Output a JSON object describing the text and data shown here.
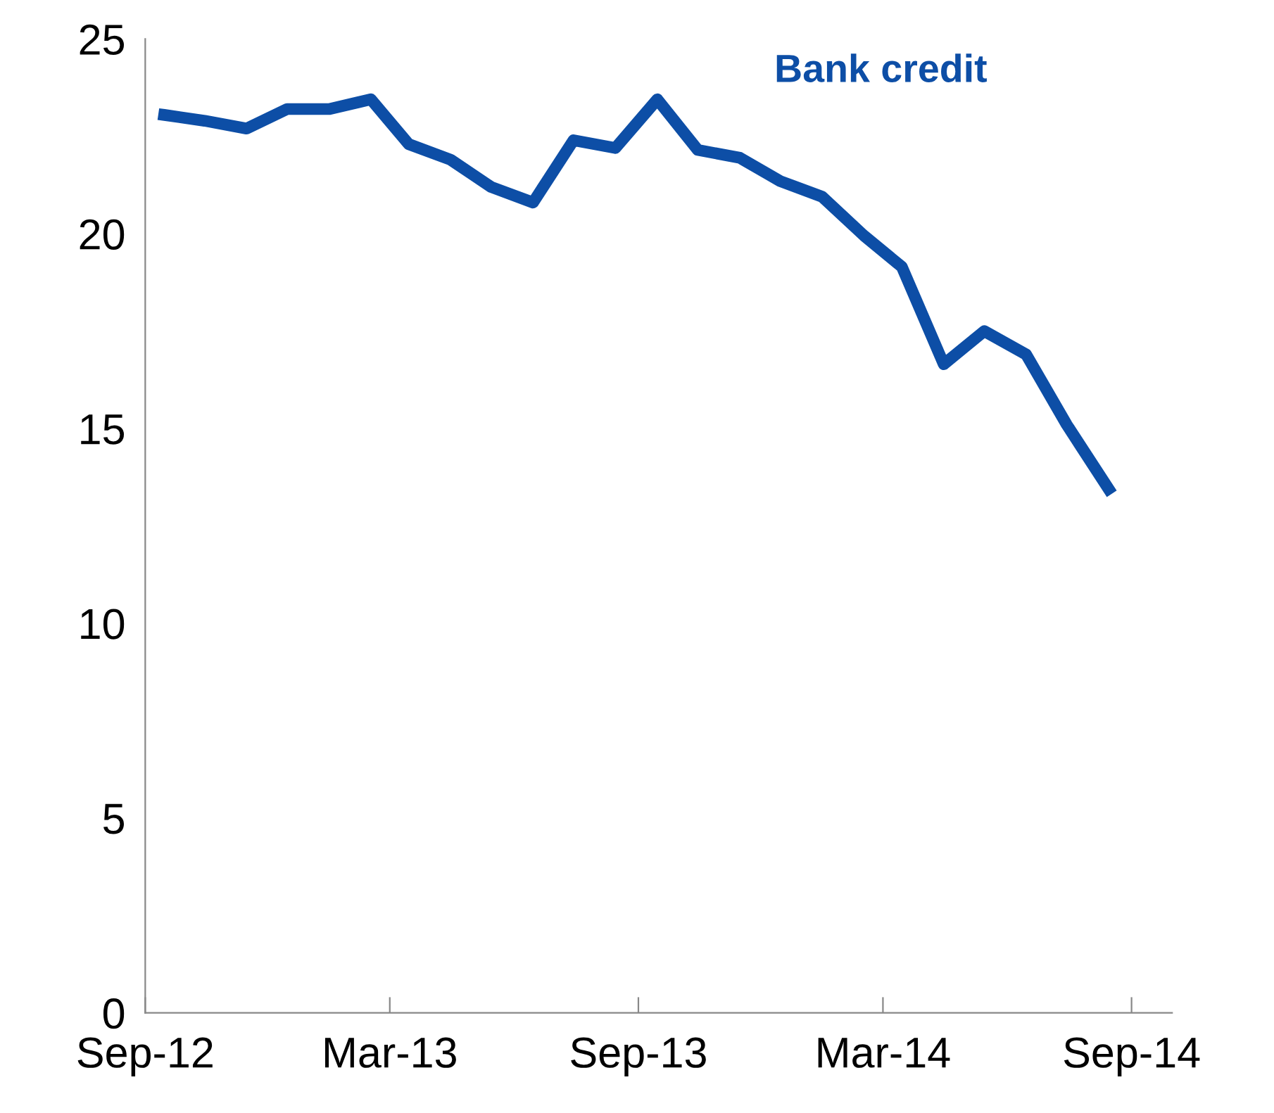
{
  "chart_data": {
    "type": "line",
    "x": [
      "2012-09-15",
      "2012-10-15",
      "2012-11-15",
      "2012-12-15",
      "2013-01-15",
      "2013-02-15",
      "2013-03-15",
      "2013-04-15",
      "2013-05-15",
      "2013-06-15",
      "2013-07-15",
      "2013-08-15",
      "2013-09-15",
      "2013-10-15",
      "2013-11-15",
      "2013-12-15",
      "2014-01-15",
      "2014-02-15",
      "2014-03-15",
      "2014-04-15",
      "2014-05-15",
      "2014-06-15",
      "2014-07-15",
      "2014-08-15"
    ],
    "series": [
      {
        "name": "Bank credit",
        "color": "#0d4ea6",
        "values": [
          23.05,
          22.9,
          22.7,
          23.2,
          23.2,
          23.45,
          22.3,
          21.9,
          21.2,
          20.8,
          22.4,
          22.2,
          23.45,
          22.15,
          21.95,
          21.35,
          20.95,
          19.95,
          19.15,
          16.65,
          17.5,
          16.9,
          15.1,
          13.45
        ]
      }
    ],
    "xlim": [
      "2012-09-01",
      "2014-10-01"
    ],
    "xticks": [
      {
        "value": "2012-09-01",
        "label": "Sep-12"
      },
      {
        "value": "2013-03-01",
        "label": "Mar-13"
      },
      {
        "value": "2013-09-01",
        "label": "Sep-13"
      },
      {
        "value": "2014-03-01",
        "label": "Mar-14"
      },
      {
        "value": "2014-09-01",
        "label": "Sep-14"
      }
    ],
    "ylim": [
      0,
      25
    ],
    "yticks": [
      0,
      5,
      10,
      15,
      20,
      25
    ],
    "grid": false,
    "legend": false,
    "marker": "none",
    "line_style": "solid"
  }
}
